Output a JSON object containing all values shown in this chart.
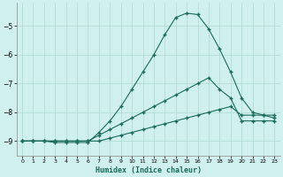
{
  "xlabel": "Humidex (Indice chaleur)",
  "ylabel": "",
  "bg_color": "#cff0ee",
  "line_color": "#1a6b5a",
  "grid_color": "#b0d8d0",
  "xlim": [
    -0.5,
    23.5
  ],
  "ylim": [
    -9.5,
    -4.2
  ],
  "xticks": [
    0,
    1,
    2,
    3,
    4,
    5,
    6,
    7,
    8,
    9,
    10,
    11,
    12,
    13,
    14,
    15,
    16,
    17,
    18,
    19,
    20,
    21,
    22,
    23
  ],
  "yticks": [
    -9,
    -8,
    -7,
    -6,
    -5
  ],
  "line1_x": [
    0,
    1,
    2,
    3,
    4,
    5,
    6,
    7,
    8,
    9,
    10,
    11,
    12,
    13,
    14,
    15,
    16,
    17,
    18,
    19,
    20,
    21,
    22,
    23
  ],
  "line1_y": [
    -9.0,
    -9.0,
    -9.0,
    -9.05,
    -9.05,
    -9.05,
    -9.05,
    -8.7,
    -8.3,
    -7.8,
    -7.2,
    -6.6,
    -6.0,
    -5.3,
    -4.7,
    -4.55,
    -4.6,
    -5.1,
    -5.8,
    -6.6,
    -7.5,
    -8.0,
    -8.1,
    -8.2
  ],
  "line2_x": [
    0,
    1,
    2,
    3,
    4,
    5,
    6,
    7,
    8,
    9,
    10,
    11,
    12,
    13,
    14,
    15,
    16,
    17,
    18,
    19,
    20,
    21,
    22,
    23
  ],
  "line2_y": [
    -9.0,
    -9.0,
    -9.0,
    -9.0,
    -9.0,
    -9.0,
    -9.0,
    -8.8,
    -8.6,
    -8.4,
    -8.2,
    -8.0,
    -7.8,
    -7.6,
    -7.4,
    -7.2,
    -7.0,
    -6.8,
    -7.2,
    -7.5,
    -8.3,
    -8.3,
    -8.3,
    -8.3
  ],
  "line3_x": [
    0,
    1,
    2,
    3,
    4,
    5,
    6,
    7,
    8,
    9,
    10,
    11,
    12,
    13,
    14,
    15,
    16,
    17,
    18,
    19,
    20,
    21,
    22,
    23
  ],
  "line3_y": [
    -9.0,
    -9.0,
    -9.0,
    -9.0,
    -9.0,
    -9.0,
    -9.0,
    -9.0,
    -8.9,
    -8.8,
    -8.7,
    -8.6,
    -8.5,
    -8.4,
    -8.3,
    -8.2,
    -8.1,
    -8.0,
    -7.9,
    -7.8,
    -8.1,
    -8.1,
    -8.1,
    -8.1
  ]
}
